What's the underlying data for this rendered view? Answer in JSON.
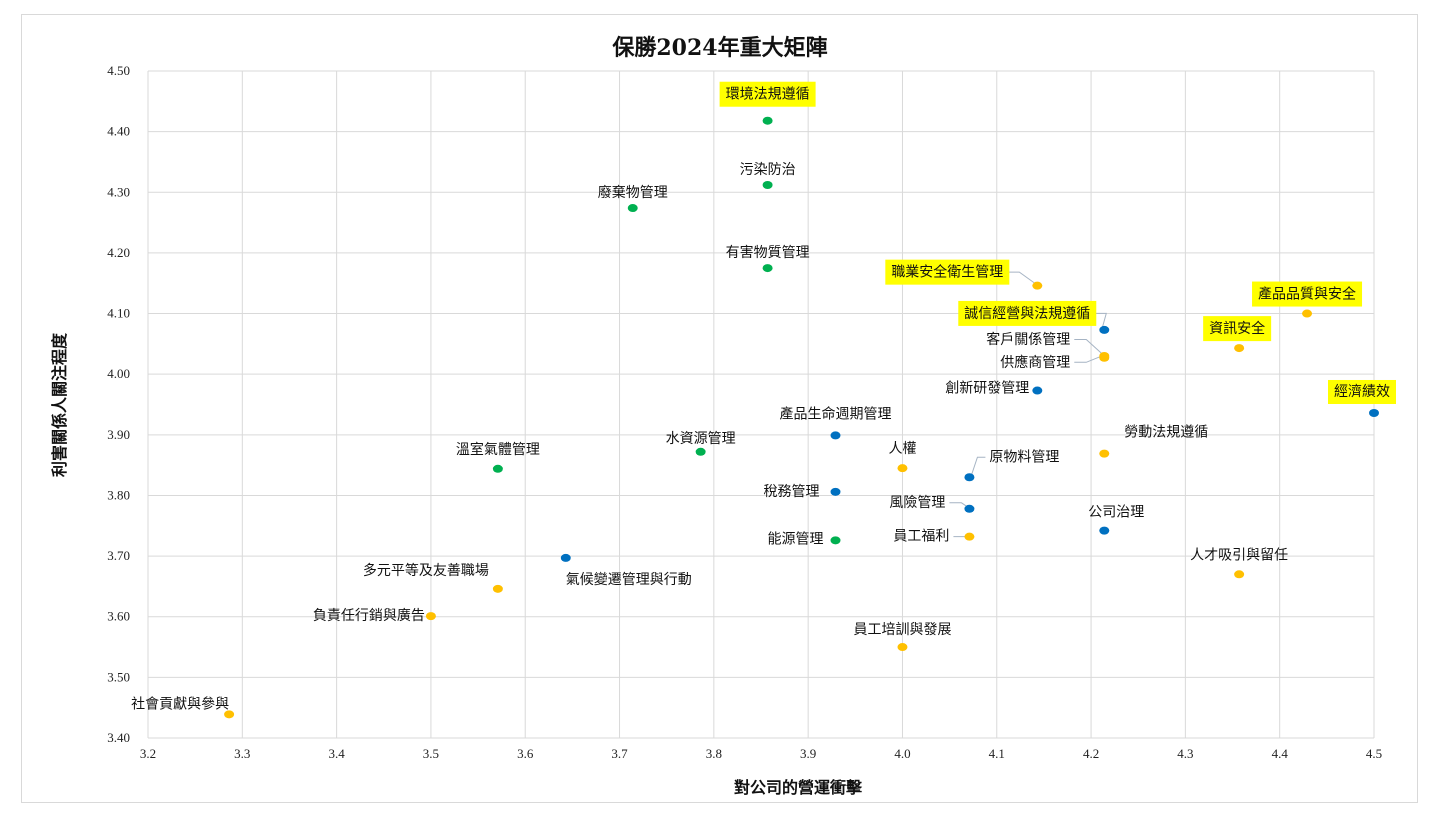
{
  "chart_data": {
    "type": "scatter",
    "title": "保勝2024年重大矩陣",
    "xlabel": "對公司的營運衝擊",
    "ylabel": "利害關係人關注程度",
    "xlim": [
      3.2,
      4.5
    ],
    "ylim": [
      3.4,
      4.5
    ],
    "x_ticks": [
      "3.2",
      "3.3",
      "3.4",
      "3.5",
      "3.6",
      "3.7",
      "3.8",
      "3.9",
      "4.0",
      "4.1",
      "4.2",
      "4.3",
      "4.4",
      "4.5"
    ],
    "y_ticks": [
      "3.40",
      "3.50",
      "3.60",
      "3.70",
      "3.80",
      "3.90",
      "4.00",
      "4.10",
      "4.20",
      "4.30",
      "4.40",
      "4.50"
    ],
    "grid": true,
    "colors": {
      "environment": "#00b050",
      "governance": "#0070c0",
      "social": "#ffc000",
      "highlight": "#ffff00"
    },
    "points": [
      {
        "label": "環境法規遵循",
        "x": 3.857,
        "y": 4.418,
        "group": "environment",
        "highlight": true
      },
      {
        "label": "污染防治",
        "x": 3.857,
        "y": 4.312,
        "group": "environment",
        "highlight": false
      },
      {
        "label": "廢棄物管理",
        "x": 3.714,
        "y": 4.274,
        "group": "environment",
        "highlight": false
      },
      {
        "label": "有害物質管理",
        "x": 3.857,
        "y": 4.175,
        "group": "environment",
        "highlight": false
      },
      {
        "label": "職業安全衛生管理",
        "x": 4.143,
        "y": 4.146,
        "group": "social",
        "highlight": true
      },
      {
        "label": "誠信經營與法規遵循",
        "x": 4.214,
        "y": 4.073,
        "group": "governance",
        "highlight": true
      },
      {
        "label": "產品品質與安全",
        "x": 4.429,
        "y": 4.1,
        "group": "social",
        "highlight": true
      },
      {
        "label": "資訊安全",
        "x": 4.357,
        "y": 4.043,
        "group": "social",
        "highlight": true
      },
      {
        "label": "客戶關係管理",
        "x": 4.214,
        "y": 4.03,
        "group": "social",
        "highlight": false
      },
      {
        "label": "供應商管理",
        "x": 4.214,
        "y": 4.027,
        "group": "social",
        "highlight": false
      },
      {
        "label": "創新研發管理",
        "x": 4.143,
        "y": 3.973,
        "group": "governance",
        "highlight": false
      },
      {
        "label": "經濟績效",
        "x": 4.5,
        "y": 3.936,
        "group": "governance",
        "highlight": true
      },
      {
        "label": "產品生命週期管理",
        "x": 3.929,
        "y": 3.899,
        "group": "governance",
        "highlight": false
      },
      {
        "label": "水資源管理",
        "x": 3.786,
        "y": 3.872,
        "group": "environment",
        "highlight": false
      },
      {
        "label": "溫室氣體管理",
        "x": 3.571,
        "y": 3.844,
        "group": "environment",
        "highlight": false
      },
      {
        "label": "人權",
        "x": 4.0,
        "y": 3.845,
        "group": "social",
        "highlight": false
      },
      {
        "label": "原物料管理",
        "x": 4.071,
        "y": 3.83,
        "group": "governance",
        "highlight": false
      },
      {
        "label": "勞動法規遵循",
        "x": 4.214,
        "y": 3.869,
        "group": "social",
        "highlight": false
      },
      {
        "label": "稅務管理",
        "x": 3.929,
        "y": 3.806,
        "group": "governance",
        "highlight": false
      },
      {
        "label": "風險管理",
        "x": 4.071,
        "y": 3.778,
        "group": "governance",
        "highlight": false
      },
      {
        "label": "公司治理",
        "x": 4.214,
        "y": 3.742,
        "group": "governance",
        "highlight": false
      },
      {
        "label": "員工福利",
        "x": 4.071,
        "y": 3.732,
        "group": "social",
        "highlight": false
      },
      {
        "label": "能源管理",
        "x": 3.929,
        "y": 3.726,
        "group": "environment",
        "highlight": false
      },
      {
        "label": "氣候變遷管理與行動",
        "x": 3.643,
        "y": 3.697,
        "group": "governance",
        "highlight": false
      },
      {
        "label": "人才吸引與留任",
        "x": 4.357,
        "y": 3.67,
        "group": "social",
        "highlight": false
      },
      {
        "label": "多元平等及友善職場",
        "x": 3.571,
        "y": 3.646,
        "group": "social",
        "highlight": false
      },
      {
        "label": "負責任行銷與廣告",
        "x": 3.5,
        "y": 3.601,
        "group": "social",
        "highlight": false
      },
      {
        "label": "員工培訓與發展",
        "x": 4.0,
        "y": 3.55,
        "group": "social",
        "highlight": false
      },
      {
        "label": "社會貢獻與參與",
        "x": 3.286,
        "y": 3.439,
        "group": "social",
        "highlight": false
      }
    ]
  }
}
